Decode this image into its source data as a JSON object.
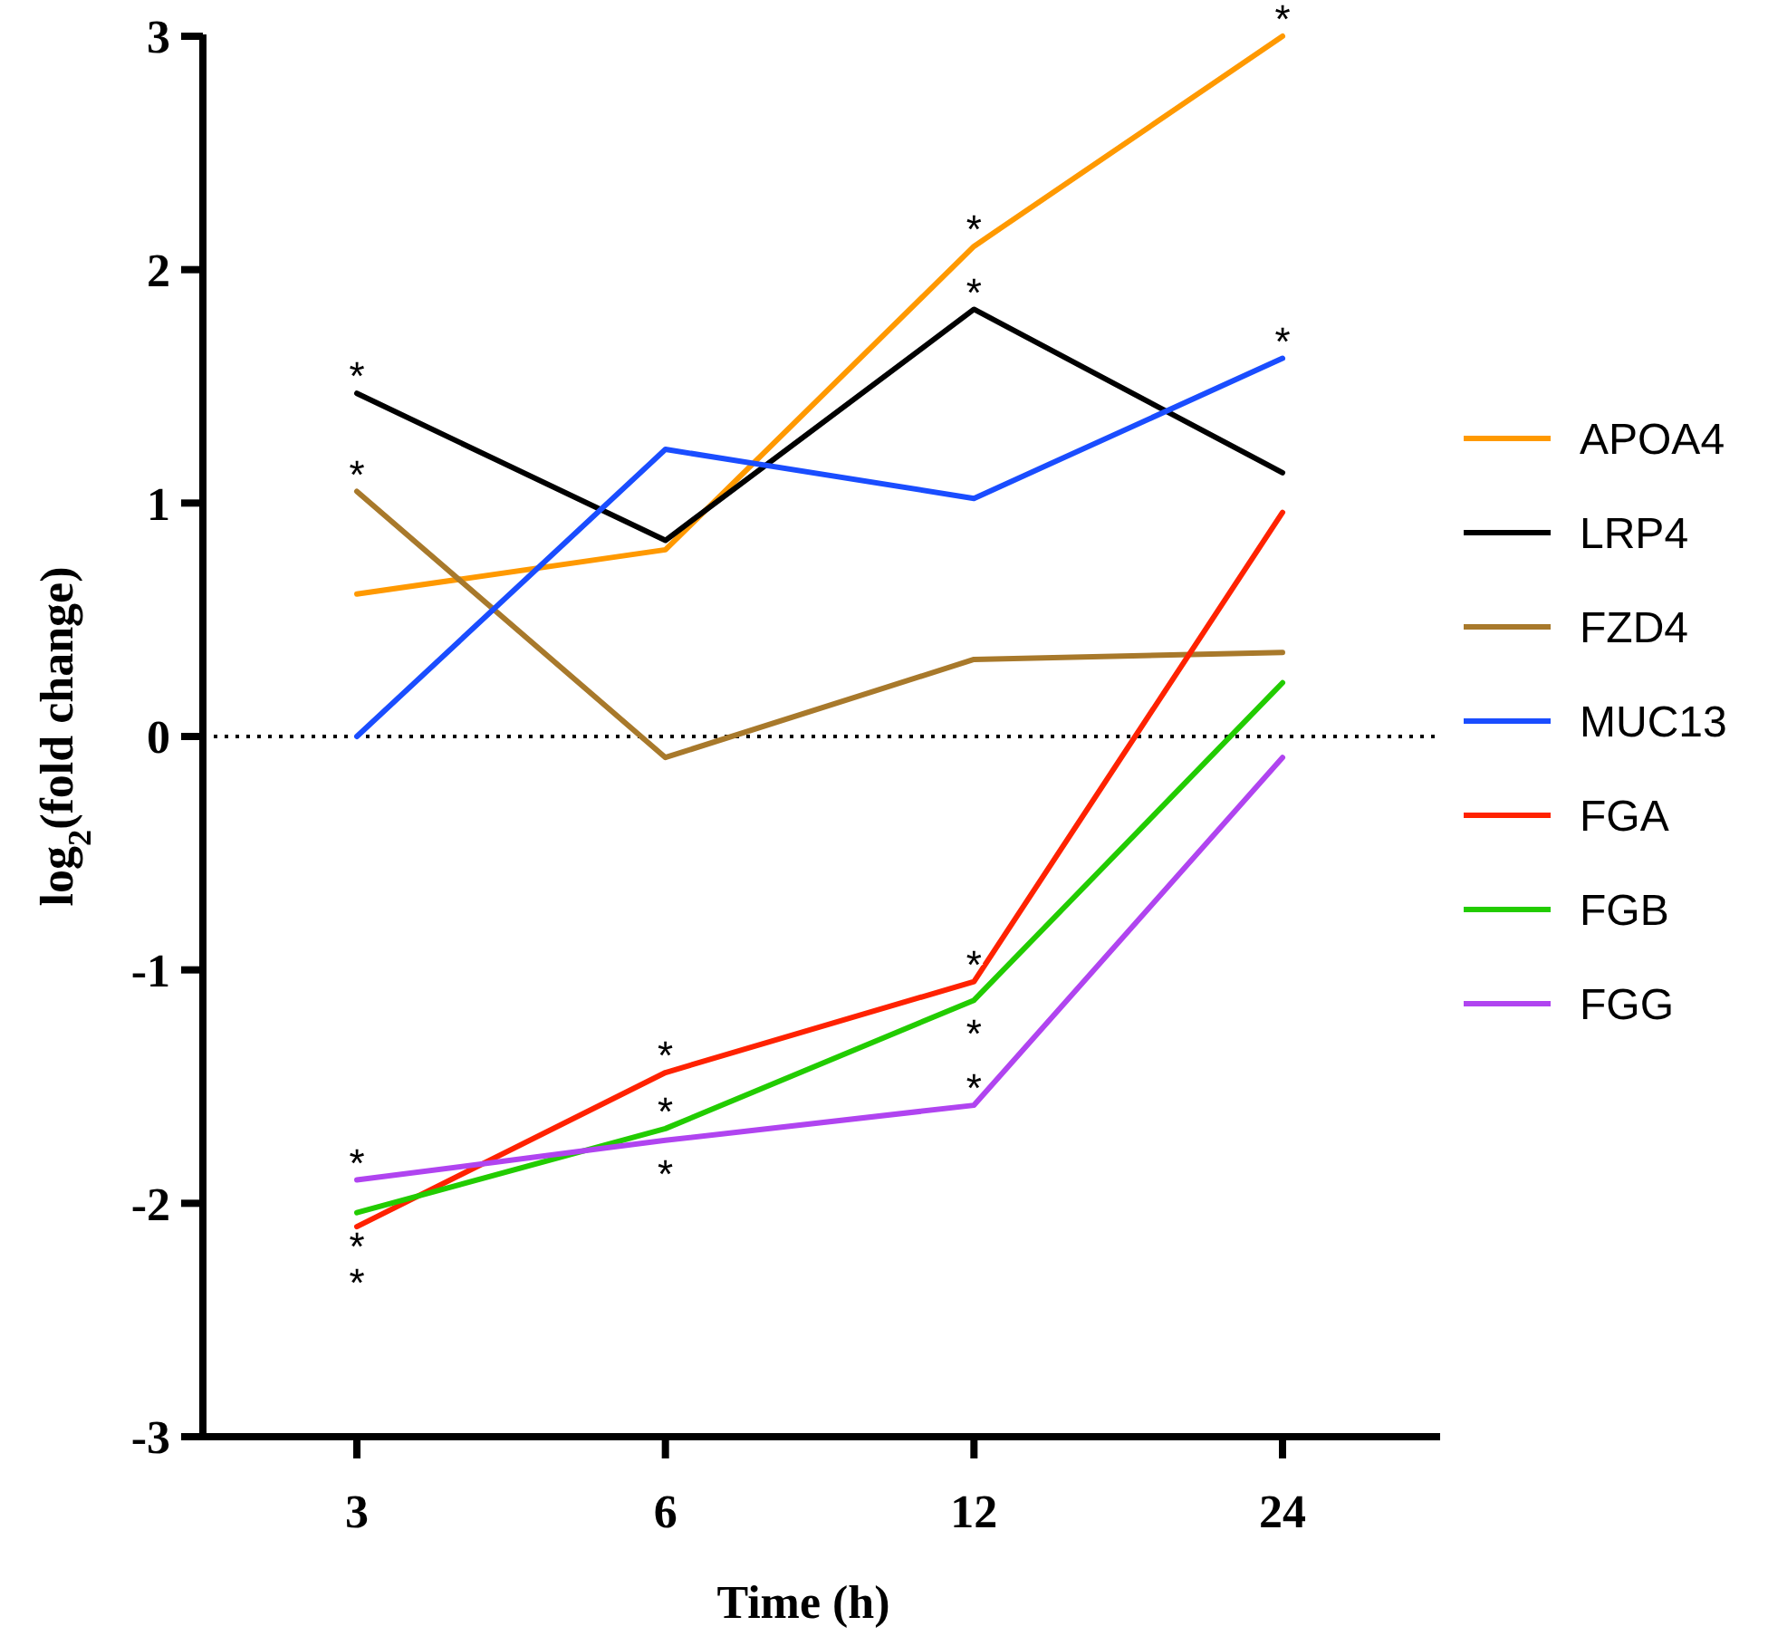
{
  "chart_data": {
    "type": "line",
    "xlabel": "Time (h)",
    "ylabel": "log$_{2}$(fold change)",
    "categories": [
      "3",
      "6",
      "12",
      "24"
    ],
    "ylim": [
      -3,
      3
    ],
    "yticks": [
      -3,
      -2,
      -1,
      0,
      1,
      2,
      3
    ],
    "grid": false,
    "legend": "right",
    "marker": "none",
    "line_style": "solid",
    "series": [
      {
        "name": "APOA4",
        "color": "#ff9900",
        "values": [
          0.61,
          0.8,
          2.1,
          3.0
        ]
      },
      {
        "name": "LRP4",
        "color": "#000000",
        "values": [
          1.47,
          0.84,
          1.83,
          1.13
        ]
      },
      {
        "name": "FZD4",
        "color": "#a8792b",
        "values": [
          1.05,
          -0.09,
          0.33,
          0.36
        ]
      },
      {
        "name": "MUC13",
        "color": "#1a4dff",
        "values": [
          0,
          1.23,
          1.02,
          1.62
        ]
      },
      {
        "name": "FGA",
        "color": "#ff2200",
        "values": [
          -2.1,
          -1.44,
          -1.05,
          0.96
        ]
      },
      {
        "name": "FGB",
        "color": "#22cc00",
        "values": [
          -2.04,
          -1.68,
          -1.13,
          0.23
        ]
      },
      {
        "name": "FGG",
        "color": "#b044f0",
        "values": [
          -1.9,
          -1.73,
          -1.58,
          -0.09
        ]
      }
    ],
    "ref_lines": [
      {
        "axis": "y",
        "value": 0,
        "color": "#000000",
        "line_style": "dotted"
      }
    ],
    "annotations": [
      {
        "text": "*",
        "x": "3",
        "y": 1.47
      },
      {
        "text": "*",
        "x": "3",
        "y": 1.05
      },
      {
        "text": "*",
        "x": "3",
        "y": -1.9
      },
      {
        "text": "*",
        "x": "3",
        "y": -2.04
      },
      {
        "text": "*",
        "x": "3",
        "y": -2.1
      },
      {
        "text": "*",
        "x": "6",
        "y": -1.44
      },
      {
        "text": "*",
        "x": "6",
        "y": -1.68
      },
      {
        "text": "*",
        "x": "6",
        "y": -1.73
      },
      {
        "text": "*",
        "x": "12",
        "y": 2.1
      },
      {
        "text": "*",
        "x": "12",
        "y": 1.83
      },
      {
        "text": "*",
        "x": "12",
        "y": -1.05
      },
      {
        "text": "*",
        "x": "12",
        "y": -1.13
      },
      {
        "text": "*",
        "x": "12",
        "y": -1.58
      },
      {
        "text": "*",
        "x": "24",
        "y": 3.0
      },
      {
        "text": "*",
        "x": "24",
        "y": 1.62
      }
    ]
  }
}
